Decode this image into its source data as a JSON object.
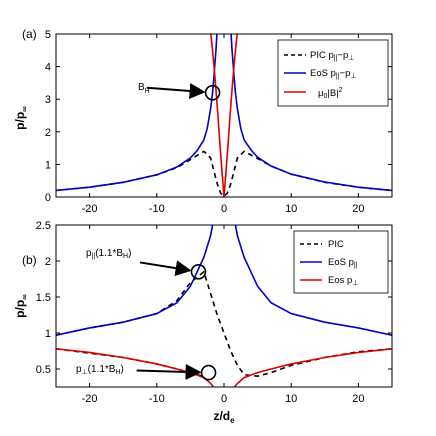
{
  "chart_data": [
    {
      "type": "line",
      "panel_label": "(a)",
      "ylabel": "p/p∞",
      "xlabel": "",
      "xlim": [
        -25,
        25
      ],
      "ylim": [
        0,
        5
      ],
      "xticks": [
        -20,
        -10,
        0,
        10,
        20
      ],
      "yticks": [
        0,
        1,
        2,
        3,
        4,
        5
      ],
      "grid": false,
      "legend_position": "top-right",
      "legend": [
        {
          "label": "PIC p||−p⊥",
          "color": "#000000",
          "style": "dashed"
        },
        {
          "label": "EoS p||−p⊥",
          "color": "#0000cc",
          "style": "solid"
        },
        {
          "label": "μ0|B|²",
          "color": "#dd0000",
          "style": "solid"
        }
      ],
      "annotation": {
        "text": "BH",
        "circle_at": [
          -1.7,
          3.2
        ],
        "arrow_from": [
          -11.5,
          3.35
        ]
      },
      "series": [
        {
          "name": "PIC p||−p⊥",
          "x": [
            -25,
            -20,
            -15,
            -10,
            -7,
            -5,
            -3,
            -2,
            -1.5,
            -1,
            -0.5,
            0,
            0.5,
            1,
            1.5,
            2,
            3,
            5,
            7,
            10,
            15,
            20,
            25
          ],
          "y": [
            0.2,
            0.3,
            0.45,
            0.68,
            0.9,
            1.15,
            1.4,
            1.2,
            0.8,
            0.4,
            0.12,
            0.02,
            0.12,
            0.4,
            0.8,
            1.2,
            1.4,
            1.18,
            0.95,
            0.7,
            0.45,
            0.3,
            0.2
          ]
        },
        {
          "name": "EoS p||−p⊥",
          "x": [
            -25,
            -20,
            -15,
            -10,
            -7,
            -5,
            -4,
            -3,
            -2.5,
            -2,
            -1.7,
            -1.5,
            -1.2,
            -1.0,
            1.0,
            1.2,
            1.5,
            1.7,
            2,
            2.5,
            3,
            4,
            5,
            7,
            10,
            15,
            20,
            25
          ],
          "y": [
            0.2,
            0.3,
            0.45,
            0.68,
            0.92,
            1.2,
            1.42,
            1.75,
            2.1,
            2.7,
            3.2,
            3.7,
            4.5,
            5.2,
            5.2,
            4.5,
            3.7,
            3.2,
            2.7,
            2.1,
            1.75,
            1.45,
            1.22,
            0.95,
            0.7,
            0.46,
            0.3,
            0.2
          ]
        },
        {
          "name": "μ0|B|²",
          "x": [
            -2.1,
            -1.8,
            -1.5,
            -1.2,
            -0.9,
            -0.6,
            -0.3,
            0,
            0.3,
            0.6,
            0.9,
            1.2,
            1.5,
            1.8,
            2.1
          ],
          "y": [
            5.2,
            4.7,
            4.05,
            3.3,
            2.5,
            1.6,
            0.8,
            0,
            0.8,
            1.6,
            2.5,
            3.3,
            4.05,
            4.7,
            5.2
          ]
        }
      ]
    },
    {
      "type": "line",
      "panel_label": "(b)",
      "ylabel": "p/p∞",
      "xlabel": "z/de",
      "xlim": [
        -25,
        25
      ],
      "ylim": [
        0.25,
        2.5
      ],
      "xticks": [
        -20,
        -10,
        0,
        10,
        20
      ],
      "yticks": [
        0.5,
        1,
        1.5,
        2,
        2.5
      ],
      "grid": false,
      "legend_position": "top-right",
      "legend": [
        {
          "label": "PIC",
          "color": "#000000",
          "style": "dashed"
        },
        {
          "label": "EoS p||",
          "color": "#0000cc",
          "style": "solid"
        },
        {
          "label": "Eos p⊥",
          "color": "#dd0000",
          "style": "solid"
        }
      ],
      "annotations": [
        {
          "text": "p||(1.1*BH)",
          "circle_at": [
            -3.8,
            1.85
          ],
          "arrow_from": [
            -12.5,
            1.98
          ]
        },
        {
          "text": "p⊥(1.1*BH)",
          "circle_at": [
            -2.3,
            0.45
          ],
          "arrow_from": [
            -13,
            0.48
          ]
        }
      ],
      "series": [
        {
          "name": "PIC p||",
          "x": [
            -25,
            -20,
            -15,
            -10,
            -7,
            -5,
            -3,
            -2,
            -1,
            0,
            1,
            2,
            3,
            5,
            7,
            10,
            15,
            20,
            25
          ],
          "y": [
            0.97,
            1.07,
            1.15,
            1.27,
            1.45,
            1.7,
            1.85,
            1.55,
            1.25,
            1.0,
            0.75,
            0.55,
            0.42,
            0.4,
            0.45,
            0.55,
            0.66,
            0.74,
            0.78
          ]
        },
        {
          "name": "PIC p⊥",
          "x": [
            -25,
            -20,
            -15,
            -10,
            -7,
            -5,
            -3
          ],
          "y": [
            0.78,
            0.72,
            0.66,
            0.57,
            0.5,
            0.44,
            0.4
          ]
        },
        {
          "name": "EoS p||",
          "x": [
            -25,
            -20,
            -15,
            -10,
            -7,
            -5,
            -4,
            -3,
            -2,
            -1.5,
            -1.2,
            1.2,
            1.5,
            2,
            3,
            4,
            5,
            7,
            10,
            15,
            20,
            25
          ],
          "y": [
            0.97,
            1.07,
            1.15,
            1.27,
            1.42,
            1.65,
            1.85,
            2.05,
            2.35,
            2.6,
            2.9,
            2.9,
            2.6,
            2.35,
            2.05,
            1.85,
            1.65,
            1.42,
            1.27,
            1.15,
            1.07,
            0.97
          ]
        },
        {
          "name": "Eos p⊥",
          "x": [
            -25,
            -20,
            -15,
            -10,
            -7,
            -5,
            -3,
            -2,
            -1.3,
            -1.0,
            1.0,
            1.3,
            2,
            3,
            5,
            7,
            10,
            15,
            20,
            25
          ],
          "y": [
            0.78,
            0.73,
            0.66,
            0.57,
            0.5,
            0.45,
            0.38,
            0.3,
            0.22,
            0.1,
            0.1,
            0.22,
            0.3,
            0.38,
            0.45,
            0.5,
            0.57,
            0.66,
            0.73,
            0.78
          ]
        }
      ]
    }
  ]
}
